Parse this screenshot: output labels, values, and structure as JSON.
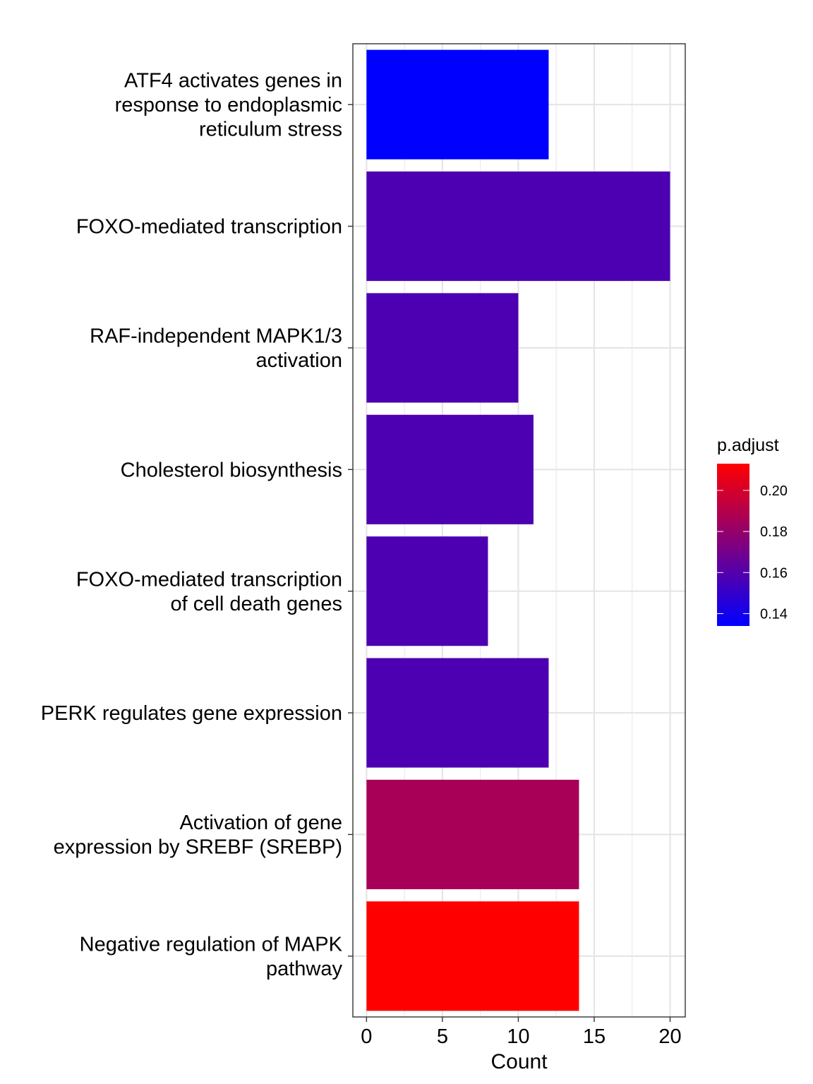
{
  "chart_data": {
    "type": "bar",
    "orientation": "horizontal",
    "categories": [
      [
        "ATF4 activates genes in",
        "response to endoplasmic",
        "reticulum  stress"
      ],
      [
        "FOXO-mediated transcription"
      ],
      [
        "RAF-independent MAPK1/3",
        "activation"
      ],
      [
        "Cholesterol biosynthesis"
      ],
      [
        "FOXO-mediated transcription",
        "of cell death genes"
      ],
      [
        "PERK regulates gene expression"
      ],
      [
        "Activation of gene",
        "expression by SREBF (SREBP)"
      ],
      [
        "Negative regulation of MAPK",
        "pathway"
      ]
    ],
    "values": [
      12,
      20,
      10,
      11,
      8,
      12,
      14,
      14
    ],
    "p_adjust": [
      0.134,
      0.158,
      0.158,
      0.158,
      0.158,
      0.158,
      0.186,
      0.213
    ],
    "xlabel": "Count",
    "xlim": [
      -0.9,
      21
    ],
    "xticks": [
      0,
      5,
      10,
      15,
      20
    ],
    "grid": true,
    "legend": {
      "title": "p.adjust",
      "placement": "right",
      "range": [
        0.134,
        0.213
      ],
      "ticks": [
        0.14,
        0.16,
        0.18,
        0.2
      ],
      "tick_labels": [
        "0.14",
        "0.16",
        "0.18",
        "0.20"
      ],
      "color_low": "#0000FF",
      "color_high": "#FF0000"
    }
  }
}
